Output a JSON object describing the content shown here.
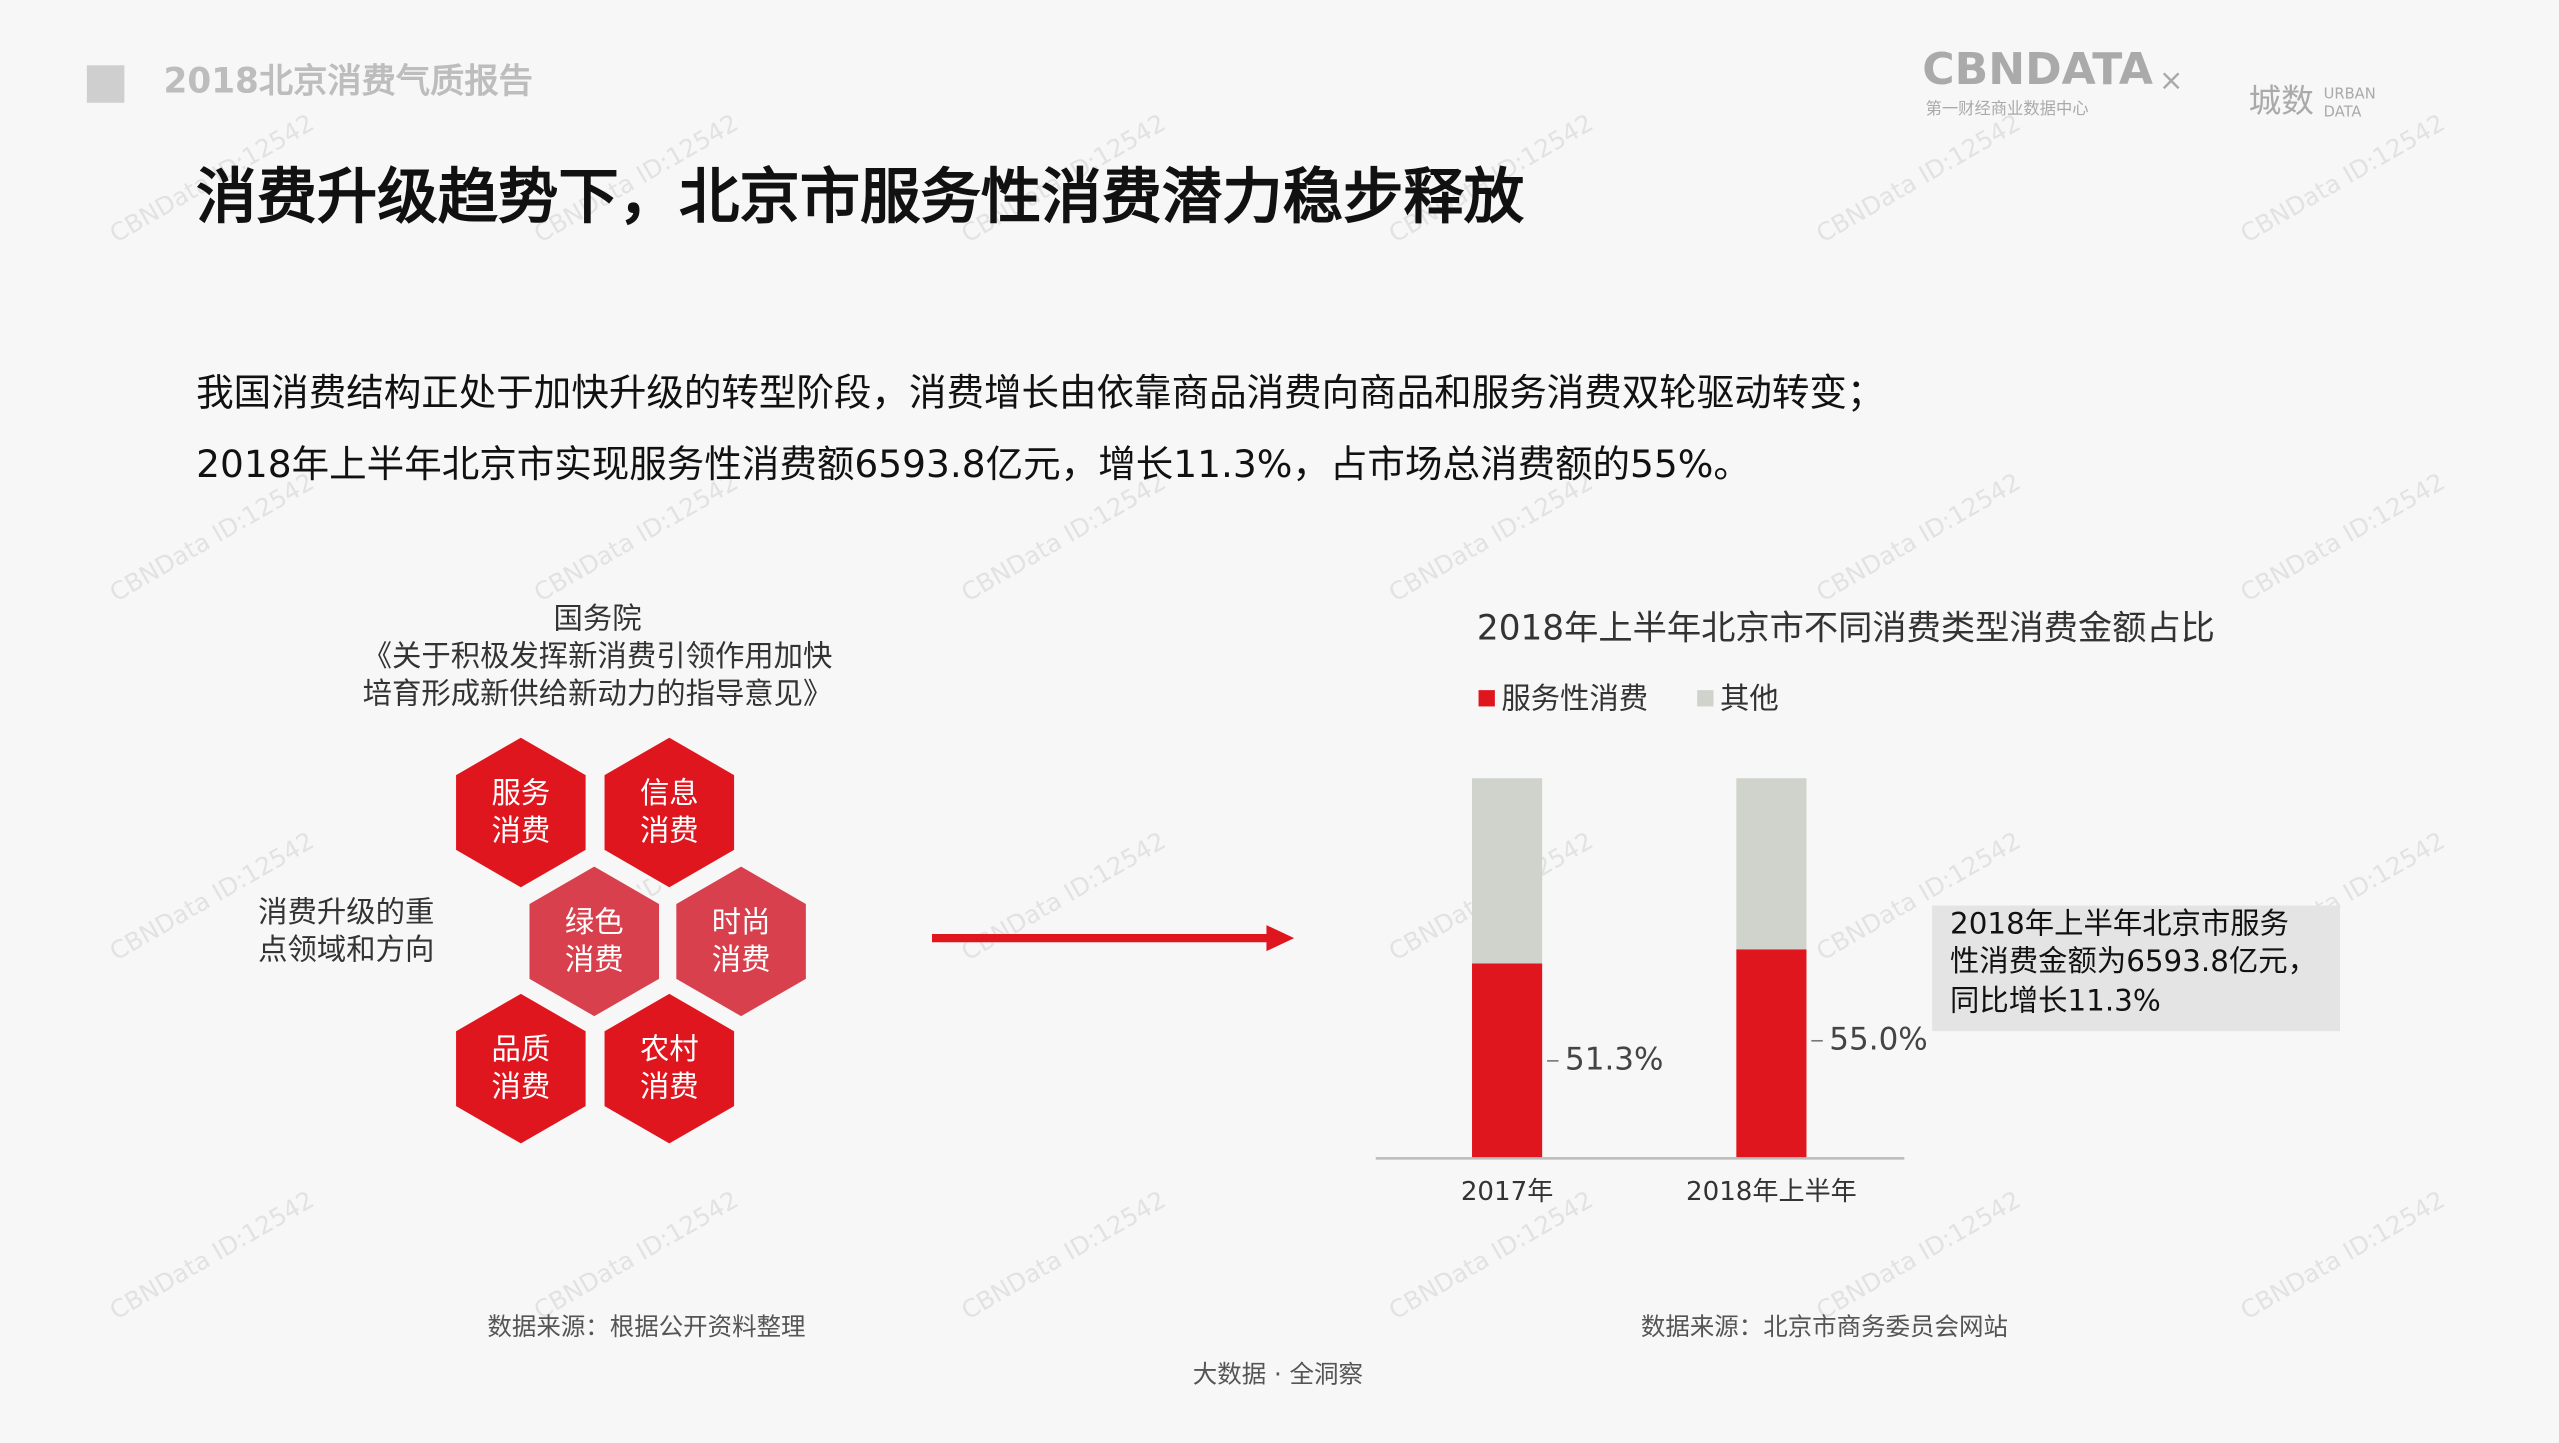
{
  "header": {
    "report": "2018北京消费气质报告",
    "logo": {
      "brand": "CBNDATA",
      "brand_sub": "第一财经商业数据中心",
      "times": "×",
      "partner": "城数",
      "partner_sub_1": "URBAN",
      "partner_sub_2": "DATA"
    }
  },
  "title": "消费升级趋势下，北京市服务性消费潜力稳步释放",
  "body": [
    "我国消费结构正处于加快升级的转型阶段，消费增长由依靠商品消费向商品和服务消费双轮驱动转变；",
    "2018年上半年北京市实现服务性消费额6593.8亿元，增长11.3%，占市场总消费额的55%。"
  ],
  "diagram": {
    "source_lines": [
      "国务院",
      "《关于积极发挥新消费引领作用加快",
      "培育形成新供给新动力的指导意见》"
    ],
    "side_label": [
      "消费升级的重",
      "点领域和方向"
    ],
    "nodes": [
      {
        "label": [
          "服务",
          "消费"
        ]
      },
      {
        "label": [
          "信息",
          "消费"
        ]
      },
      {
        "label": [
          "绿色",
          "消费"
        ]
      },
      {
        "label": [
          "时尚",
          "消费"
        ]
      },
      {
        "label": [
          "品质",
          "消费"
        ]
      },
      {
        "label": [
          "农村",
          "消费"
        ]
      }
    ]
  },
  "chart_data": {
    "type": "stacked_bar",
    "title": "2018年上半年北京市不同消费类型消费金额占比",
    "categories": [
      "2017年",
      "2018年上半年"
    ],
    "series": [
      {
        "name": "服务性消费",
        "color": "#e0161f",
        "values": [
          51.3,
          55.0
        ],
        "value_labels": [
          "51.3%",
          "55.0%"
        ]
      },
      {
        "name": "其他",
        "color": "#cfd3cc",
        "values": [
          48.7,
          45.0
        ]
      }
    ],
    "annotation": [
      "2018年上半年北京市服务",
      "性消费金额为6593.8亿元，",
      "同比增长11.3%"
    ]
  },
  "sources": [
    "数据来源：根据公开资料整理",
    "数据来源：北京市商务委员会网站"
  ],
  "footer": "大数据 · 全洞察",
  "watermark": "CBNData ID:12542"
}
